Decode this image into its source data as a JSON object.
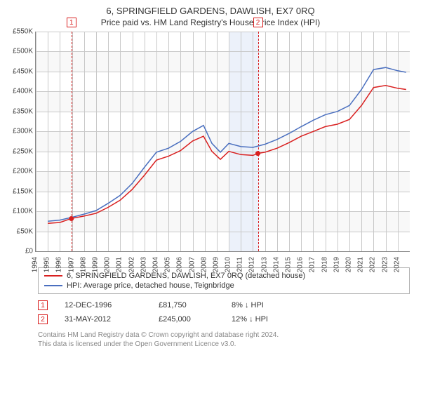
{
  "title": "6, SPRINGFIELD GARDENS, DAWLISH, EX7 0RQ",
  "subtitle": "Price paid vs. HM Land Registry's House Price Index (HPI)",
  "colors": {
    "series_property": "#d92020",
    "series_hpi": "#4a6fbf",
    "band_light": "#f2f2f2",
    "band_blue": "#ecf1fa",
    "grid": "#c8c8c8",
    "axis": "#888888",
    "text": "#333333",
    "footer": "#888888",
    "event_marker_fill": "#d92020"
  },
  "chart": {
    "type": "line",
    "ylim": [
      0,
      550000
    ],
    "ytick_step": 50000,
    "ytick_labels": [
      "£0",
      "£50K",
      "£100K",
      "£150K",
      "£200K",
      "£250K",
      "£300K",
      "£350K",
      "£400K",
      "£450K",
      "£500K",
      "£550K"
    ],
    "x_years": [
      1994,
      1995,
      1996,
      1997,
      1998,
      1999,
      2000,
      2001,
      2002,
      2003,
      2004,
      2005,
      2006,
      2007,
      2008,
      2009,
      2010,
      2011,
      2012,
      2013,
      2014,
      2015,
      2016,
      2017,
      2018,
      2019,
      2020,
      2021,
      2022,
      2023,
      2024
    ],
    "xlim": [
      1994,
      2025
    ],
    "line_width": 1.5,
    "series": {
      "property": {
        "label": "6, SPRINGFIELD GARDENS, DAWLISH, EX7 0RQ (detached house)",
        "color": "#d92020",
        "points": [
          [
            1995.0,
            70000
          ],
          [
            1996.0,
            72000
          ],
          [
            1996.95,
            82000
          ],
          [
            1998.0,
            88000
          ],
          [
            1999.0,
            95000
          ],
          [
            2000.0,
            110000
          ],
          [
            2001.0,
            128000
          ],
          [
            2002.0,
            155000
          ],
          [
            2003.0,
            190000
          ],
          [
            2004.0,
            228000
          ],
          [
            2005.0,
            238000
          ],
          [
            2006.0,
            252000
          ],
          [
            2007.0,
            276000
          ],
          [
            2007.9,
            288000
          ],
          [
            2008.6,
            250000
          ],
          [
            2009.3,
            230000
          ],
          [
            2010.0,
            250000
          ],
          [
            2011.0,
            242000
          ],
          [
            2012.0,
            240000
          ],
          [
            2012.41,
            245000
          ],
          [
            2013.0,
            248000
          ],
          [
            2014.0,
            258000
          ],
          [
            2015.0,
            272000
          ],
          [
            2016.0,
            288000
          ],
          [
            2017.0,
            300000
          ],
          [
            2018.0,
            312000
          ],
          [
            2019.0,
            318000
          ],
          [
            2020.0,
            330000
          ],
          [
            2021.0,
            365000
          ],
          [
            2022.0,
            410000
          ],
          [
            2023.0,
            415000
          ],
          [
            2024.0,
            408000
          ],
          [
            2024.7,
            405000
          ]
        ]
      },
      "hpi": {
        "label": "HPI: Average price, detached house, Teignbridge",
        "color": "#4a6fbf",
        "points": [
          [
            1995.0,
            75000
          ],
          [
            1996.0,
            78000
          ],
          [
            1997.0,
            85000
          ],
          [
            1998.0,
            93000
          ],
          [
            1999.0,
            102000
          ],
          [
            2000.0,
            120000
          ],
          [
            2001.0,
            140000
          ],
          [
            2002.0,
            170000
          ],
          [
            2003.0,
            210000
          ],
          [
            2004.0,
            248000
          ],
          [
            2005.0,
            258000
          ],
          [
            2006.0,
            275000
          ],
          [
            2007.0,
            300000
          ],
          [
            2007.9,
            315000
          ],
          [
            2008.6,
            270000
          ],
          [
            2009.3,
            248000
          ],
          [
            2010.0,
            270000
          ],
          [
            2011.0,
            262000
          ],
          [
            2012.0,
            260000
          ],
          [
            2013.0,
            268000
          ],
          [
            2014.0,
            280000
          ],
          [
            2015.0,
            295000
          ],
          [
            2016.0,
            312000
          ],
          [
            2017.0,
            328000
          ],
          [
            2018.0,
            342000
          ],
          [
            2019.0,
            350000
          ],
          [
            2020.0,
            365000
          ],
          [
            2021.0,
            405000
          ],
          [
            2022.0,
            455000
          ],
          [
            2023.0,
            460000
          ],
          [
            2024.0,
            452000
          ],
          [
            2024.7,
            448000
          ]
        ]
      }
    },
    "events": [
      {
        "n": "1",
        "year": 1996.95,
        "value": 81750
      },
      {
        "n": "2",
        "year": 2012.41,
        "value": 245000
      }
    ],
    "shaded_year_band": [
      2010,
      2012.5
    ]
  },
  "legend": [
    {
      "color": "#d92020",
      "label": "6, SPRINGFIELD GARDENS, DAWLISH, EX7 0RQ (detached house)"
    },
    {
      "color": "#4a6fbf",
      "label": "HPI: Average price, detached house, Teignbridge"
    }
  ],
  "event_rows": [
    {
      "n": "1",
      "color": "#d92020",
      "date": "12-DEC-1996",
      "price": "£81,750",
      "diff": "8% ↓ HPI"
    },
    {
      "n": "2",
      "color": "#d92020",
      "date": "31-MAY-2012",
      "price": "£245,000",
      "diff": "12% ↓ HPI"
    }
  ],
  "footer": [
    "Contains HM Land Registry data © Crown copyright and database right 2024.",
    "This data is licensed under the Open Government Licence v3.0."
  ]
}
